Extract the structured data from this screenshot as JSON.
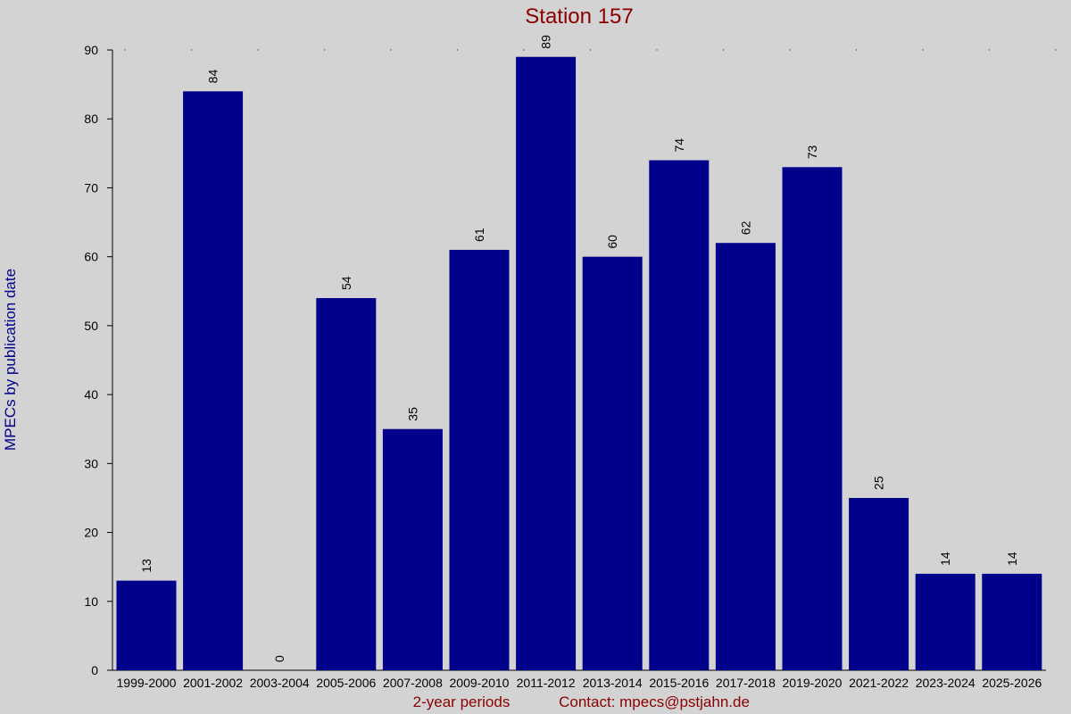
{
  "chart_data": {
    "type": "bar",
    "title": "Station 157",
    "ylabel": "MPECs by publication date",
    "xlabel": "2-year periods",
    "contact": "Contact: mpecs@pstjahn.de",
    "categories": [
      "1999-2000",
      "2001-2002",
      "2003-2004",
      "2005-2006",
      "2007-2008",
      "2009-2010",
      "2011-2012",
      "2013-2014",
      "2015-2016",
      "2017-2018",
      "2019-2020",
      "2021-2022",
      "2023-2024",
      "2025-2026"
    ],
    "values": [
      13,
      84,
      0,
      54,
      35,
      61,
      89,
      60,
      74,
      62,
      73,
      25,
      14,
      14
    ],
    "ylim": [
      0,
      90
    ],
    "yticks": [
      0,
      10,
      20,
      30,
      40,
      50,
      60,
      70,
      80,
      90
    ],
    "bar_color": "#00008b",
    "background": "#d3d3d3",
    "title_color": "#8b0000",
    "ylabel_color": "#00008b",
    "grid": false,
    "data_labels": true
  }
}
